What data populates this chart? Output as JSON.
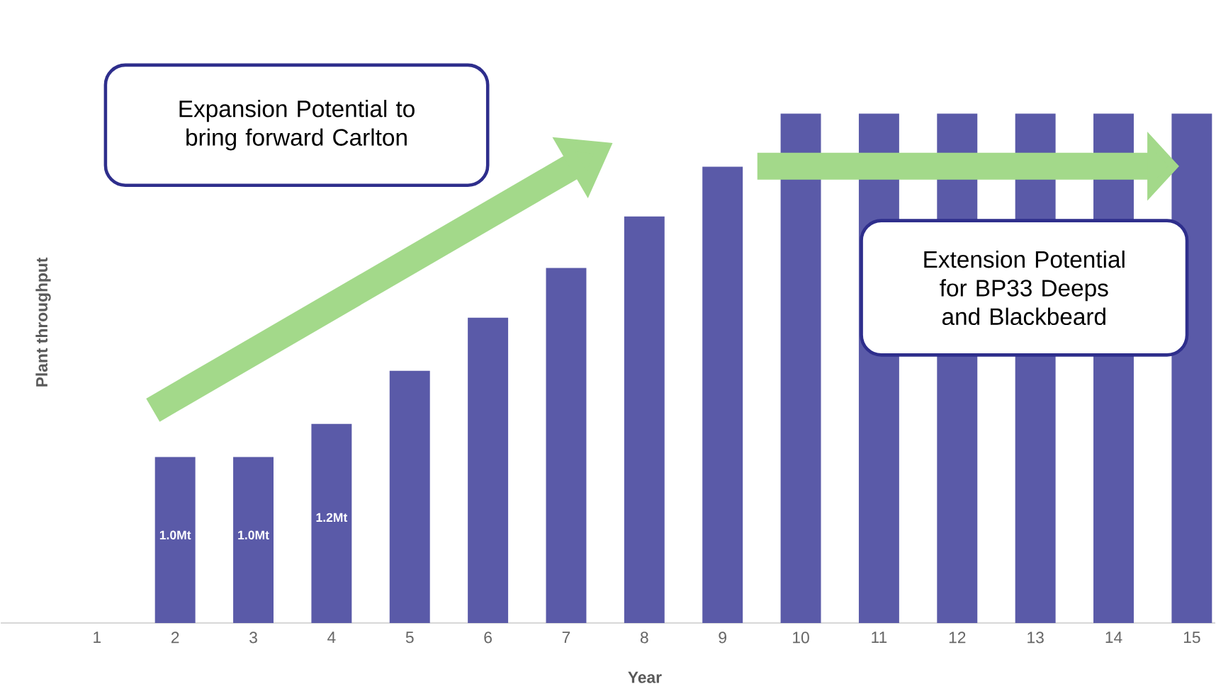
{
  "chart_data": {
    "type": "bar",
    "xlabel": "Year",
    "ylabel": "Plant throughput",
    "categories": [
      "1",
      "2",
      "3",
      "4",
      "5",
      "6",
      "7",
      "8",
      "9",
      "10",
      "11",
      "12",
      "13",
      "14",
      "15"
    ],
    "values": [
      null,
      1.0,
      1.0,
      1.2,
      1.52,
      1.84,
      2.14,
      2.45,
      2.75,
      3.07,
      3.07,
      3.07,
      3.07,
      3.07,
      3.07
    ],
    "value_labels": [
      null,
      "1.0Mt",
      "1.0Mt",
      "1.2Mt",
      null,
      null,
      null,
      null,
      null,
      null,
      null,
      null,
      null,
      null,
      null
    ],
    "color": "#5a5aa8",
    "annotations": [
      "Expansion Potential to bring forward Carlton",
      "Extension Potential for BP33 Deeps and Blackbeard"
    ]
  }
}
